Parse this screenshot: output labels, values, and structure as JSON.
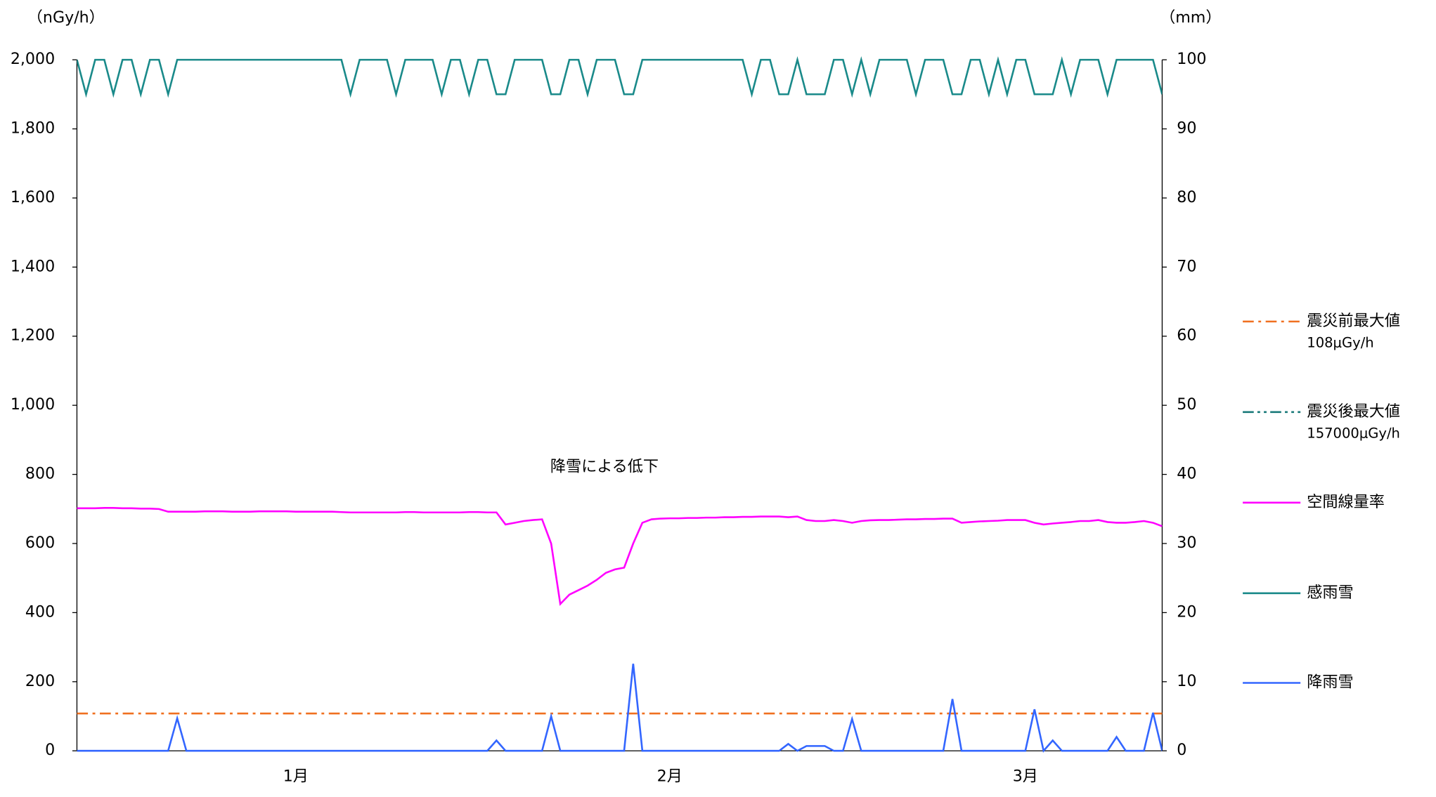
{
  "chart_data": {
    "type": "line",
    "ylabel": "（nGy/h）",
    "y2label": "（mm）",
    "annotation": "降雪による低下",
    "ylim": [
      0,
      2000
    ],
    "yticks": [
      0,
      200,
      400,
      600,
      800,
      {
        "value": 1000,
        "label": "1,000"
      },
      {
        "value": 1200,
        "label": "1,200"
      },
      {
        "value": 1400,
        "label": "1,400"
      },
      {
        "value": 1600,
        "label": "1,600"
      },
      {
        "value": 1800,
        "label": "1,800"
      },
      {
        "value": 2000,
        "label": "2,000"
      }
    ],
    "y2lim": [
      0,
      100
    ],
    "y2ticks": [
      0,
      10,
      20,
      30,
      40,
      50,
      60,
      70,
      80,
      90,
      100
    ],
    "legend": "right",
    "reference_lines": [
      {
        "name": "震災前最大値",
        "label": "108μGy/h",
        "value": 108,
        "color": "#f07020",
        "dash": "12 5 3 5"
      },
      {
        "name": "震災後最大値",
        "label": "157000μGy/h",
        "value": 157000,
        "color": "#1a7a7a",
        "dash": "12 4 3 4 3 4"
      }
    ],
    "categories": [
      null,
      null,
      null,
      null,
      null,
      null,
      null,
      null,
      null,
      null,
      null,
      null,
      null,
      null,
      null,
      null,
      null,
      null,
      null,
      null,
      null,
      null,
      null,
      null,
      "1月",
      null,
      null,
      null,
      null,
      null,
      null,
      null,
      null,
      null,
      null,
      null,
      null,
      null,
      null,
      null,
      null,
      null,
      null,
      null,
      null,
      null,
      null,
      null,
      null,
      null,
      null,
      null,
      null,
      null,
      null,
      null,
      null,
      null,
      null,
      null,
      null,
      null,
      null,
      null,
      null,
      "2月",
      null,
      null,
      null,
      null,
      null,
      null,
      null,
      null,
      null,
      null,
      null,
      null,
      null,
      null,
      null,
      null,
      null,
      null,
      null,
      null,
      null,
      null,
      null,
      null,
      null,
      null,
      null,
      null,
      null,
      null,
      null,
      null,
      null,
      null,
      null,
      null,
      null,
      null,
      "3月",
      null,
      null,
      null,
      null,
      null,
      null,
      null,
      null,
      null,
      null,
      null,
      null,
      null,
      null,
      null
    ],
    "series": [
      {
        "name": "空間線量率",
        "color": "#ff00ff",
        "values": [
          702,
          702,
          702,
          703,
          703,
          702,
          702,
          701,
          701,
          700,
          692,
          692,
          692,
          692,
          693,
          693,
          693,
          692,
          692,
          692,
          693,
          693,
          693,
          693,
          692,
          692,
          692,
          692,
          692,
          691,
          690,
          690,
          690,
          690,
          690,
          690,
          691,
          691,
          690,
          690,
          690,
          690,
          690,
          691,
          691,
          690,
          690,
          655,
          660,
          665,
          668,
          670,
          600,
          425,
          452,
          465,
          478,
          495,
          515,
          525,
          530,
          600,
          660,
          670,
          672,
          673,
          673,
          674,
          674,
          675,
          675,
          676,
          676,
          677,
          677,
          678,
          678,
          678,
          676,
          678,
          668,
          665,
          665,
          668,
          665,
          660,
          665,
          667,
          668,
          668,
          669,
          670,
          670,
          671,
          671,
          672,
          672,
          660,
          662,
          664,
          665,
          666,
          668,
          668,
          668,
          660,
          655,
          658,
          660,
          662,
          665,
          665,
          668,
          662,
          660,
          660,
          662,
          665,
          660,
          650
        ]
      },
      {
        "name": "感雨雪",
        "color": "#1a8a8a",
        "axis": "y2",
        "values": [
          100,
          95,
          100,
          100,
          95,
          100,
          100,
          95,
          100,
          100,
          95,
          100,
          100,
          100,
          100,
          100,
          100,
          100,
          100,
          100,
          100,
          100,
          100,
          100,
          100,
          100,
          100,
          100,
          100,
          100,
          95,
          100,
          100,
          100,
          100,
          95,
          100,
          100,
          100,
          100,
          95,
          100,
          100,
          95,
          100,
          100,
          95,
          95,
          100,
          100,
          100,
          100,
          95,
          95,
          100,
          100,
          95,
          100,
          100,
          100,
          95,
          95,
          100,
          100,
          100,
          100,
          100,
          100,
          100,
          100,
          100,
          100,
          100,
          100,
          95,
          100,
          100,
          95,
          95,
          100,
          95,
          95,
          95,
          100,
          100,
          95,
          100,
          95,
          100,
          100,
          100,
          100,
          95,
          100,
          100,
          100,
          95,
          95,
          100,
          100,
          95,
          100,
          95,
          100,
          100,
          95,
          95,
          95,
          100,
          95,
          100,
          100,
          100,
          95,
          100,
          100,
          100,
          100,
          100,
          95
        ]
      },
      {
        "name": "降雨雪",
        "color": "#3366ff",
        "axis": "y2",
        "values": [
          0,
          0,
          0,
          0,
          0,
          0,
          0,
          0,
          0,
          0,
          0,
          4.7,
          0,
          0,
          0,
          0,
          0,
          0,
          0,
          0,
          0,
          0,
          0,
          0,
          0,
          0,
          0,
          0,
          0,
          0,
          0,
          0,
          0,
          0,
          0,
          0,
          0,
          0,
          0,
          0,
          0,
          0,
          0,
          0,
          0,
          0,
          1.5,
          0,
          0,
          0,
          0,
          0,
          5,
          0,
          0,
          0,
          0,
          0,
          0,
          0,
          0,
          12.6,
          0,
          0,
          0,
          0,
          0,
          0,
          0,
          0,
          0,
          0,
          0,
          0,
          0,
          0,
          0,
          0,
          1,
          0,
          0.7,
          0.7,
          0.7,
          0,
          0,
          4.6,
          0,
          0,
          0,
          0,
          0,
          0,
          0,
          0,
          0,
          0,
          7.5,
          0,
          0,
          0,
          0,
          0,
          0,
          0,
          0,
          6,
          0,
          1.5,
          0,
          0,
          0,
          0,
          0,
          0,
          2,
          0,
          0,
          0,
          5.5,
          0
        ]
      }
    ]
  }
}
